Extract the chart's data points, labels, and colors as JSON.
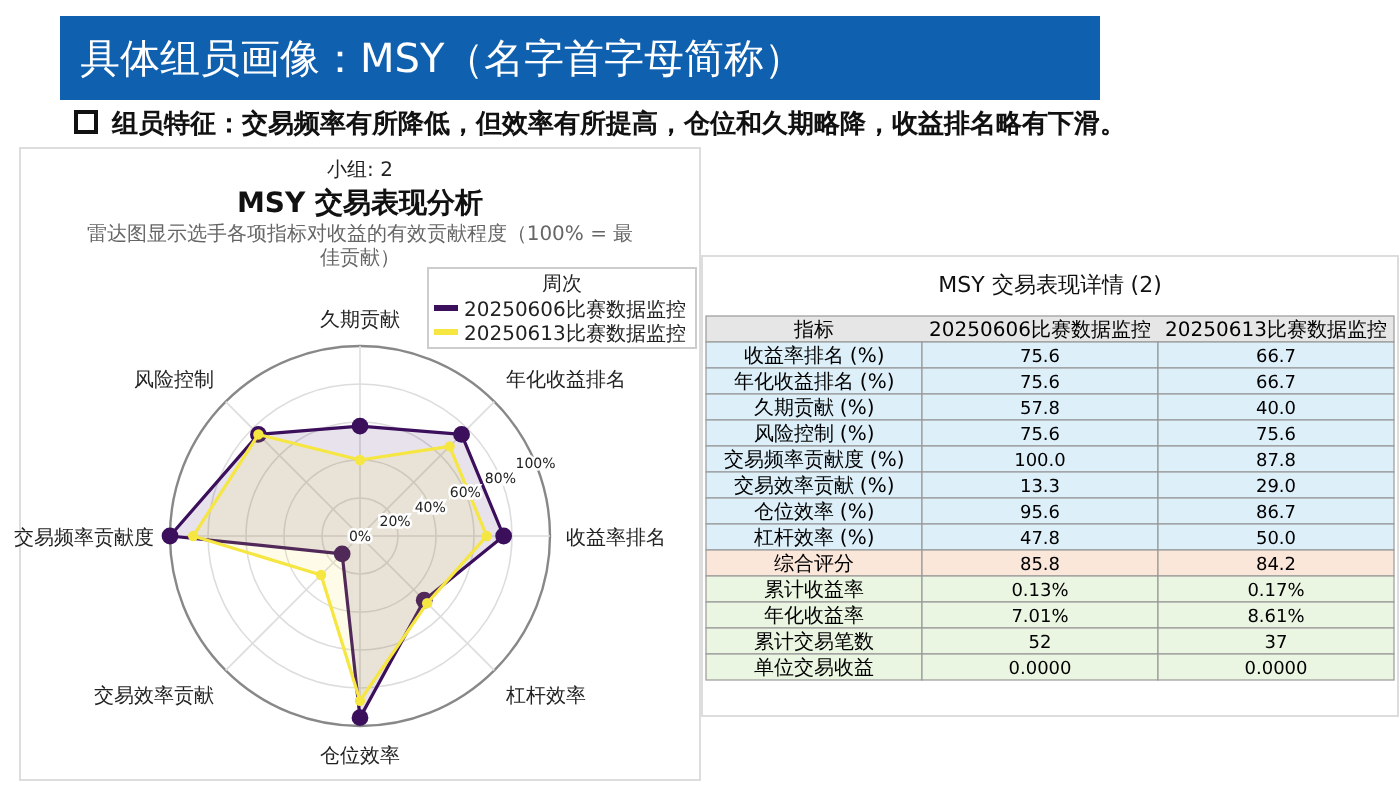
{
  "chart_data": [
    {
      "type": "other",
      "title": "具体组员画像：MSY（名字首字母简称）",
      "annotations": [
        "组员特征：交易频率有所降低，但效率有所提高，仓位和久期略降，收益排名略有下滑。"
      ]
    },
    {
      "type": "radar",
      "title": "MSY 交易表现分析",
      "subtitle": "雷达图显示选手各项指标对收益的有效贡献程度（100% = 最佳贡献）",
      "annotations": [
        "小组: 2"
      ],
      "categories": [
        "久期贡献",
        "年化收益排名",
        "收益率排名",
        "杠杆效率",
        "仓位效率",
        "交易效率贡献",
        "交易频率贡献度",
        "风险控制"
      ],
      "series": [
        {
          "name": "20250606比赛数据监控",
          "color": "#3b0f5c",
          "values": [
            57.8,
            75.6,
            75.6,
            47.8,
            95.6,
            13.3,
            100,
            75.6
          ]
        },
        {
          "name": "20250613比赛数据监控",
          "color": "#f5e642",
          "values": [
            40,
            66.7,
            66.7,
            50,
            86.7,
            29,
            87.8,
            75.6
          ]
        }
      ],
      "ylim": [
        0,
        100
      ],
      "yticks": [
        {
          "value": 0,
          "label": "0%"
        },
        {
          "value": 20,
          "label": "20%"
        },
        {
          "value": 40,
          "label": "40%"
        },
        {
          "value": 60,
          "label": "60%"
        },
        {
          "value": 80,
          "label": "80%"
        },
        {
          "value": 100,
          "label": "100%"
        }
      ],
      "grid": true,
      "marker": "circle",
      "legend": "top right",
      "legend_title": "周次"
    },
    {
      "type": "heatmap",
      "title": "MSY 交易表现详情 (2)",
      "ylabel": "指标",
      "categories": [
        "20250606比赛数据监控",
        "20250613比赛数据监控"
      ],
      "y_categories": [
        "收益率排名 (%)",
        "年化收益排名 (%)",
        "久期贡献 (%)",
        "风险控制 (%)",
        "交易频率贡献度 (%)",
        "交易效率贡献 (%)",
        "仓位效率 (%)",
        "杠杆效率 (%)",
        "综合评分",
        "累计收益率",
        "年化收益率",
        "累计交易笔数",
        "单位交易收益"
      ],
      "cells": [
        [
          75.6,
          66.7
        ],
        [
          75.6,
          66.7
        ],
        [
          57.8,
          40
        ],
        [
          75.6,
          75.6
        ],
        [
          100,
          87.8
        ],
        [
          13.3,
          29
        ],
        [
          95.6,
          86.7
        ],
        [
          47.8,
          50
        ],
        [
          85.8,
          84.2
        ],
        [
          0.13,
          0.17
        ],
        [
          7.01,
          8.61
        ],
        [
          52,
          37
        ],
        [
          0,
          0
        ]
      ],
      "cell_labels": [
        [
          "75.6",
          "66.7"
        ],
        [
          "75.6",
          "66.7"
        ],
        [
          "57.8",
          "40.0"
        ],
        [
          "75.6",
          "75.6"
        ],
        [
          "100.0",
          "87.8"
        ],
        [
          "13.3",
          "29.0"
        ],
        [
          "95.6",
          "86.7"
        ],
        [
          "47.8",
          "50.0"
        ],
        [
          "85.8",
          "84.2"
        ],
        [
          "0.13%",
          "0.17%"
        ],
        [
          "7.01%",
          "8.61%"
        ],
        [
          "52",
          "37"
        ],
        [
          "0.0000",
          "0.0000"
        ]
      ],
      "colors": [
        "#ddf0fa",
        "#ddf0fa",
        "#ddf0fa",
        "#ddf0fa",
        "#ddf0fa",
        "#ddf0fa",
        "#ddf0fa",
        "#ddf0fa",
        "#fbe6da",
        "#ebf6e2",
        "#ebf6e2",
        "#ebf6e2",
        "#ebf6e2"
      ]
    }
  ]
}
